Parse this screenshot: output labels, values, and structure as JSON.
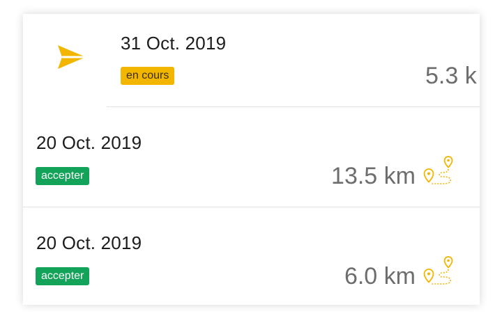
{
  "rides": [
    {
      "date": "31 Oct. 2019",
      "status": "en cours",
      "distance": "5.3 k"
    },
    {
      "date": "20 Oct. 2019",
      "status": "accepter",
      "distance": "13.5 km"
    },
    {
      "date": "20 Oct. 2019",
      "status": "accepter",
      "distance": "6.0 km"
    }
  ],
  "icons": {
    "active_ride": "send-arrow",
    "route": "map-pin-route"
  },
  "colors": {
    "accent_yellow": "#f2b600",
    "accepted_green": "#13a358",
    "distance_text": "#6d6d6d"
  }
}
